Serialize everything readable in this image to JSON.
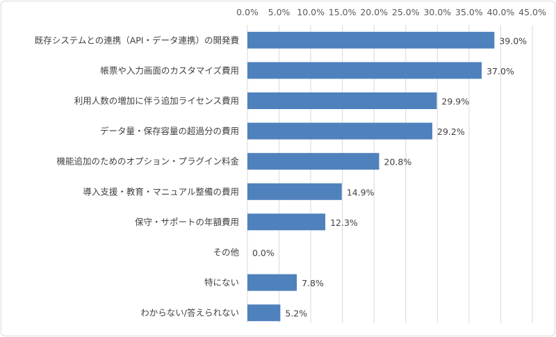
{
  "chart_data": {
    "type": "bar",
    "orientation": "horizontal",
    "categories": [
      "既存システムとの連携（API・データ連携）の開発費",
      "帳票や入力画面のカスタマイズ費用",
      "利用人数の増加に伴う追加ライセンス費用",
      "データ量・保存容量の超過分の費用",
      "機能追加のためのオプション・プラグイン料金",
      "導入支援・教育・マニュアル整備の費用",
      "保守・サポートの年額費用",
      "その他",
      "特にない",
      "わからない/答えられない"
    ],
    "values": [
      39.0,
      37.0,
      29.9,
      29.2,
      20.8,
      14.9,
      12.3,
      0.0,
      7.8,
      5.2
    ],
    "data_labels": [
      "39.0%",
      "37.0%",
      "29.9%",
      "29.2%",
      "20.8%",
      "14.9%",
      "12.3%",
      "0.0%",
      "7.8%",
      "5.2%"
    ],
    "xlim": [
      0,
      45
    ],
    "x_ticks": [
      0,
      5,
      10,
      15,
      20,
      25,
      30,
      35,
      40,
      45
    ],
    "x_tick_labels": [
      "0.0%",
      "5.0%",
      "10.0%",
      "15.0%",
      "20.0%",
      "25.0%",
      "30.0%",
      "35.0%",
      "40.0%",
      "45.0%"
    ],
    "x_axis_position": "top",
    "grid": true,
    "legend": "none",
    "title": "",
    "xlabel": "",
    "ylabel": "",
    "colors": {
      "bar": "#4f81bd",
      "grid": "#d9d9d9",
      "text": "#404040"
    }
  }
}
